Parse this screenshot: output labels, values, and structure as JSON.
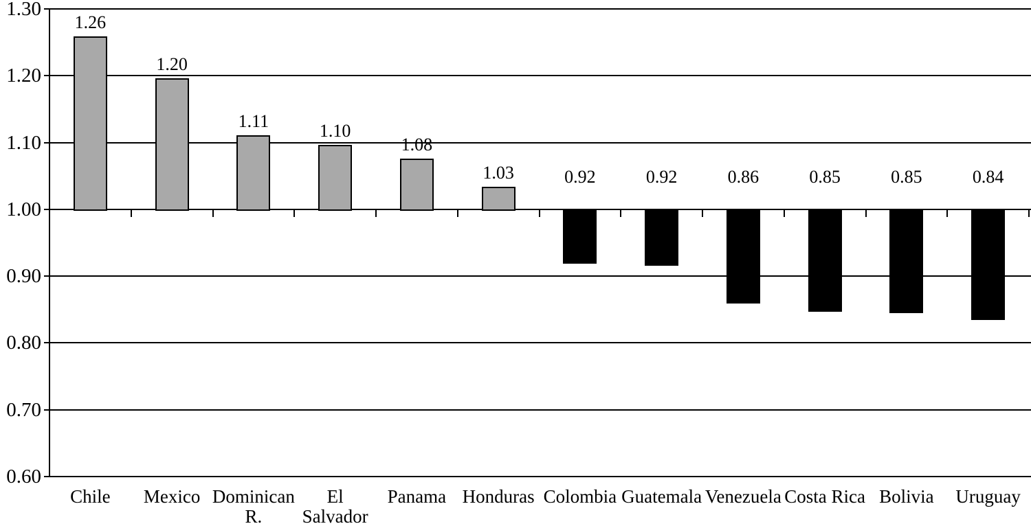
{
  "chart_data": {
    "type": "bar",
    "title": "",
    "xlabel": "",
    "ylabel": "",
    "categories": [
      "Chile",
      "Mexico",
      "Dominican R.",
      "El Salvador",
      "Panama",
      "Honduras",
      "Colombia",
      "Guatemala",
      "Venezuela",
      "Costa Rica",
      "Bolivia",
      "Uruguay"
    ],
    "category_label_lines": [
      [
        "Chile"
      ],
      [
        "Mexico"
      ],
      [
        "Dominican",
        "R."
      ],
      [
        "El",
        "Salvador"
      ],
      [
        "Panama"
      ],
      [
        "Honduras"
      ],
      [
        "Colombia"
      ],
      [
        "Guatemala"
      ],
      [
        "Venezuela"
      ],
      [
        "Costa Rica"
      ],
      [
        "Bolivia"
      ],
      [
        "Uruguay"
      ]
    ],
    "values": [
      1.26,
      1.2,
      1.11,
      1.1,
      1.08,
      1.03,
      0.92,
      0.92,
      0.86,
      0.85,
      0.85,
      0.84
    ],
    "value_labels": [
      "1.26",
      "1.20",
      "1.11",
      "1.10",
      "1.08",
      "1.03",
      "0.92",
      "0.92",
      "0.86",
      "0.85",
      "0.85",
      "0.84"
    ],
    "drawn_values": [
      1.259,
      1.196,
      1.111,
      1.096,
      1.076,
      1.034,
      0.919,
      0.916,
      0.859,
      0.847,
      0.845,
      0.834
    ],
    "baseline": 1.0,
    "ylim": [
      0.6,
      1.3
    ],
    "ytick_step": 0.1,
    "ytick_labels": [
      "1.30",
      "1.20",
      "1.10",
      "1.00",
      "0.90",
      "0.80",
      "0.70",
      "0.60"
    ],
    "grid": true,
    "legend": "none",
    "colors": {
      "bar_above_baseline": "#a9a9a9",
      "bar_below_baseline": "#000000",
      "bar_border": "#000000",
      "line": "#000000",
      "text": "#000000",
      "background": "#ffffff"
    }
  }
}
